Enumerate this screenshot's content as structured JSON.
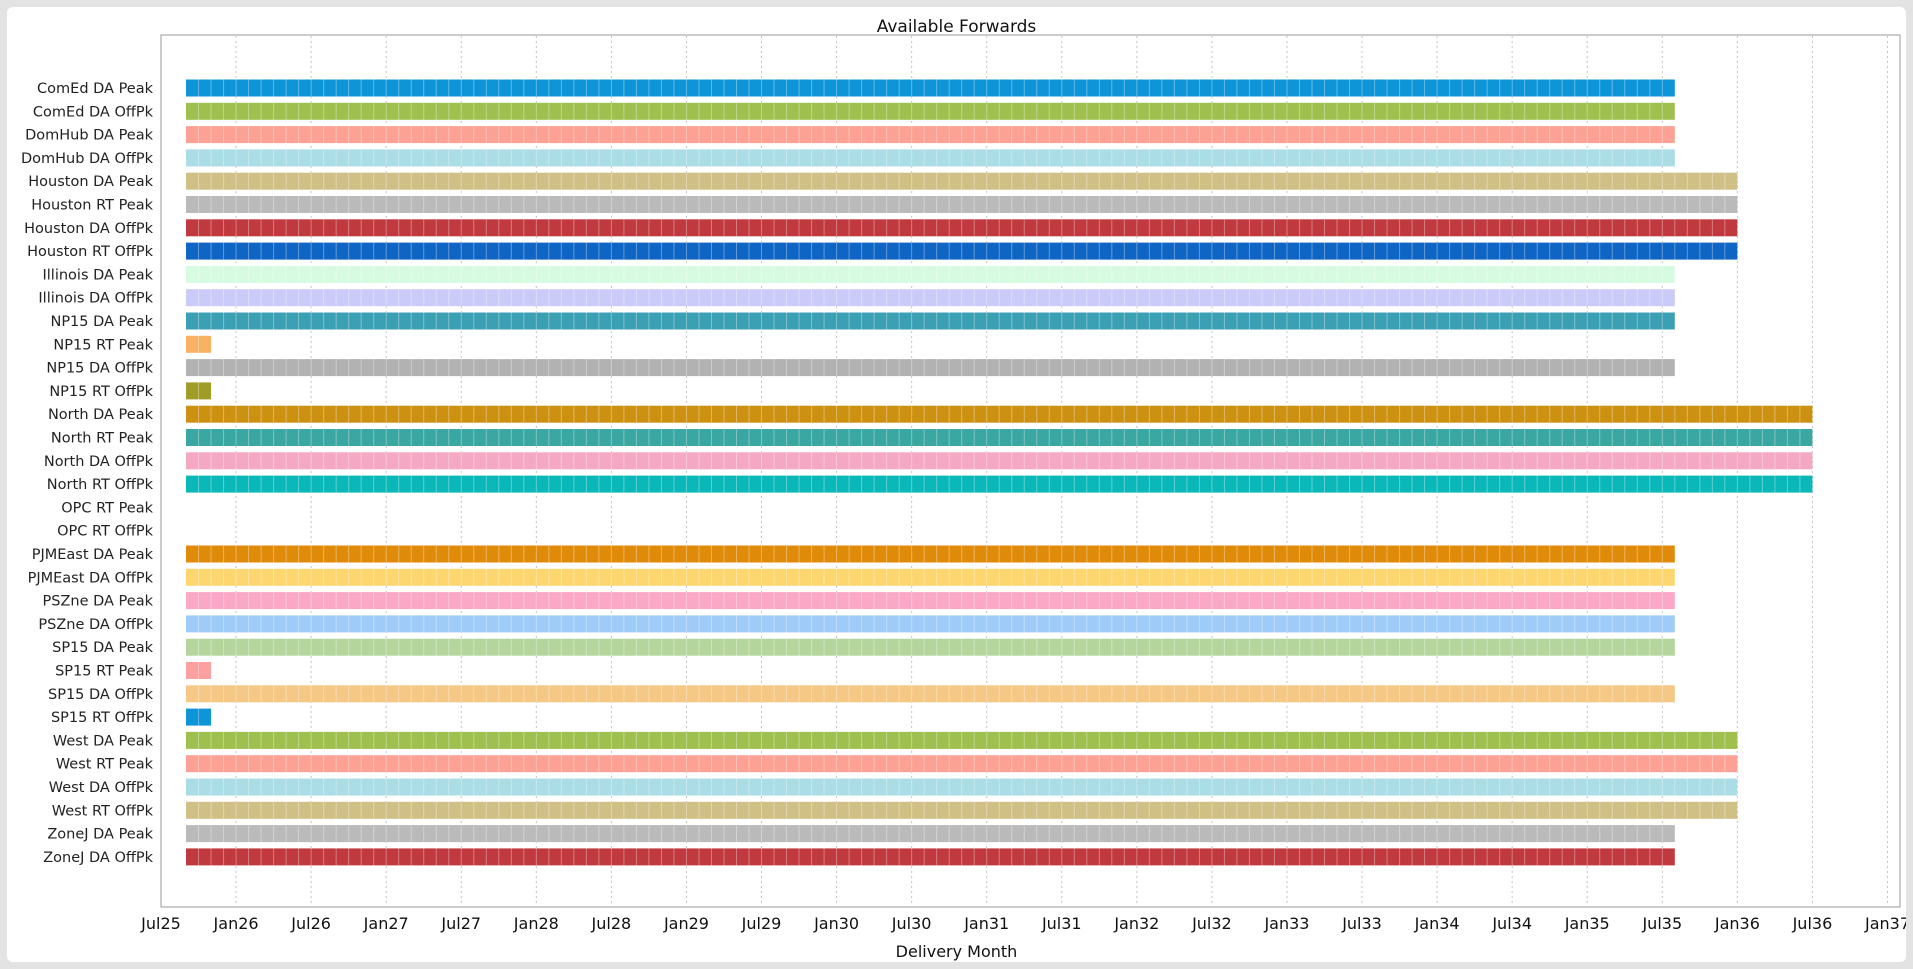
{
  "chart_data": {
    "type": "gantt",
    "title": "Available Forwards",
    "xlabel": "Delivery Month",
    "ylabel": "",
    "x_ticks": [
      "Jul25",
      "Jan26",
      "Jul26",
      "Jan27",
      "Jul27",
      "Jan28",
      "Jul28",
      "Jan29",
      "Jul29",
      "Jan30",
      "Jul30",
      "Jan31",
      "Jul31",
      "Jan32",
      "Jul32",
      "Jan33",
      "Jul33",
      "Jan34",
      "Jul34",
      "Jan35",
      "Jul35",
      "Jan36",
      "Jul36",
      "Jan37"
    ],
    "xlim": [
      "2025-07",
      "2037-02"
    ],
    "grid": true,
    "series": [
      {
        "name": "ComEd DA Peak",
        "start": "2025-09",
        "end": "2035-08",
        "color": "#0e95d8"
      },
      {
        "name": "ComEd DA OffPk",
        "start": "2025-09",
        "end": "2035-08",
        "color": "#9fc04e"
      },
      {
        "name": "DomHub DA Peak",
        "start": "2025-09",
        "end": "2035-08",
        "color": "#fca193"
      },
      {
        "name": "DomHub DA OffPk",
        "start": "2025-09",
        "end": "2035-08",
        "color": "#aadde5"
      },
      {
        "name": "Houston DA Peak",
        "start": "2025-09",
        "end": "2036-01",
        "color": "#d1c086"
      },
      {
        "name": "Houston RT Peak",
        "start": "2025-09",
        "end": "2036-01",
        "color": "#bababa"
      },
      {
        "name": "Houston DA OffPk",
        "start": "2025-09",
        "end": "2036-01",
        "color": "#c0393e"
      },
      {
        "name": "Houston RT OffPk",
        "start": "2025-09",
        "end": "2036-01",
        "color": "#0f65c4"
      },
      {
        "name": "Illinois DA Peak",
        "start": "2025-09",
        "end": "2035-08",
        "color": "#d6fbe0"
      },
      {
        "name": "Illinois DA OffPk",
        "start": "2025-09",
        "end": "2035-08",
        "color": "#cbcbfa"
      },
      {
        "name": "NP15 DA Peak",
        "start": "2025-09",
        "end": "2035-08",
        "color": "#3ca0b4"
      },
      {
        "name": "NP15 RT Peak",
        "start": "2025-09",
        "end": "2025-11",
        "color": "#f9b264"
      },
      {
        "name": "NP15 DA OffPk",
        "start": "2025-09",
        "end": "2035-08",
        "color": "#b2b2b2"
      },
      {
        "name": "NP15 RT OffPk",
        "start": "2025-09",
        "end": "2025-11",
        "color": "#a09d27"
      },
      {
        "name": "North DA Peak",
        "start": "2025-09",
        "end": "2036-07",
        "color": "#cd9112"
      },
      {
        "name": "North RT Peak",
        "start": "2025-09",
        "end": "2036-07",
        "color": "#3ba7a2"
      },
      {
        "name": "North DA OffPk",
        "start": "2025-09",
        "end": "2036-07",
        "color": "#f4a8c4"
      },
      {
        "name": "North RT OffPk",
        "start": "2025-09",
        "end": "2036-07",
        "color": "#0ab8b9"
      },
      {
        "name": "OPC RT Peak",
        "start": null,
        "end": null,
        "color": "#ffffff"
      },
      {
        "name": "OPC RT OffPk",
        "start": null,
        "end": null,
        "color": "#ffffff"
      },
      {
        "name": "PJMEast DA Peak",
        "start": "2025-09",
        "end": "2035-08",
        "color": "#e08a0a"
      },
      {
        "name": "PJMEast DA OffPk",
        "start": "2025-09",
        "end": "2035-08",
        "color": "#fdd66f"
      },
      {
        "name": "PSZne DA Peak",
        "start": "2025-09",
        "end": "2035-08",
        "color": "#fba8c6"
      },
      {
        "name": "PSZne DA OffPk",
        "start": "2025-09",
        "end": "2035-08",
        "color": "#9fcbf8"
      },
      {
        "name": "SP15 DA Peak",
        "start": "2025-09",
        "end": "2035-08",
        "color": "#b4d69d"
      },
      {
        "name": "SP15 RT Peak",
        "start": "2025-09",
        "end": "2025-11",
        "color": "#fca19f"
      },
      {
        "name": "SP15 DA OffPk",
        "start": "2025-09",
        "end": "2035-08",
        "color": "#f6c886"
      },
      {
        "name": "SP15 RT OffPk",
        "start": "2025-09",
        "end": "2025-11",
        "color": "#0e95d8"
      },
      {
        "name": "West DA Peak",
        "start": "2025-09",
        "end": "2036-01",
        "color": "#9fc04e"
      },
      {
        "name": "West RT Peak",
        "start": "2025-09",
        "end": "2036-01",
        "color": "#fca193"
      },
      {
        "name": "West DA OffPk",
        "start": "2025-09",
        "end": "2036-01",
        "color": "#aadde5"
      },
      {
        "name": "West RT OffPk",
        "start": "2025-09",
        "end": "2036-01",
        "color": "#d1c086"
      },
      {
        "name": "ZoneJ DA Peak",
        "start": "2025-09",
        "end": "2035-08",
        "color": "#bababa"
      },
      {
        "name": "ZoneJ DA OffPk",
        "start": "2025-09",
        "end": "2035-08",
        "color": "#c0393e"
      }
    ]
  }
}
